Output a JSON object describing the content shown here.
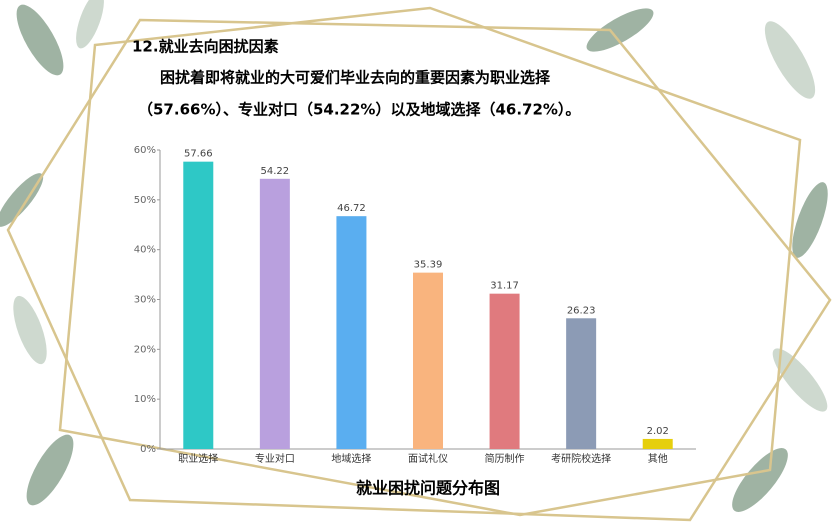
{
  "heading": "12.就业去向困扰因素",
  "paragraph_lines": [
    "困扰着即将就业的大可爱们毕业去向的重要因素为职业选择",
    "（57.66%）、专业对口（54.22%）以及地域选择（46.72%）。"
  ],
  "chart_data": {
    "type": "bar",
    "title": "就业困扰问题分布图",
    "categories": [
      "职业选择",
      "专业对口",
      "地域选择",
      "面试礼仪",
      "简历制作",
      "考研院校选择",
      "其他"
    ],
    "values": [
      57.66,
      54.22,
      46.72,
      35.39,
      31.17,
      26.23,
      2.02
    ],
    "colors": [
      "#2ec8c6",
      "#b9a0de",
      "#5aaef0",
      "#f9b47e",
      "#e07a7e",
      "#8c9bb5",
      "#e6cf0d"
    ],
    "ylim": [
      0,
      60
    ],
    "yticks": [
      {
        "value": 0,
        "label": "0%"
      },
      {
        "value": 10,
        "label": "10%"
      },
      {
        "value": 20,
        "label": "20%"
      },
      {
        "value": 30,
        "label": "30%"
      },
      {
        "value": 40,
        "label": "40%"
      },
      {
        "value": 50,
        "label": "50%"
      },
      {
        "value": 60,
        "label": "60%"
      }
    ],
    "grid": false
  }
}
